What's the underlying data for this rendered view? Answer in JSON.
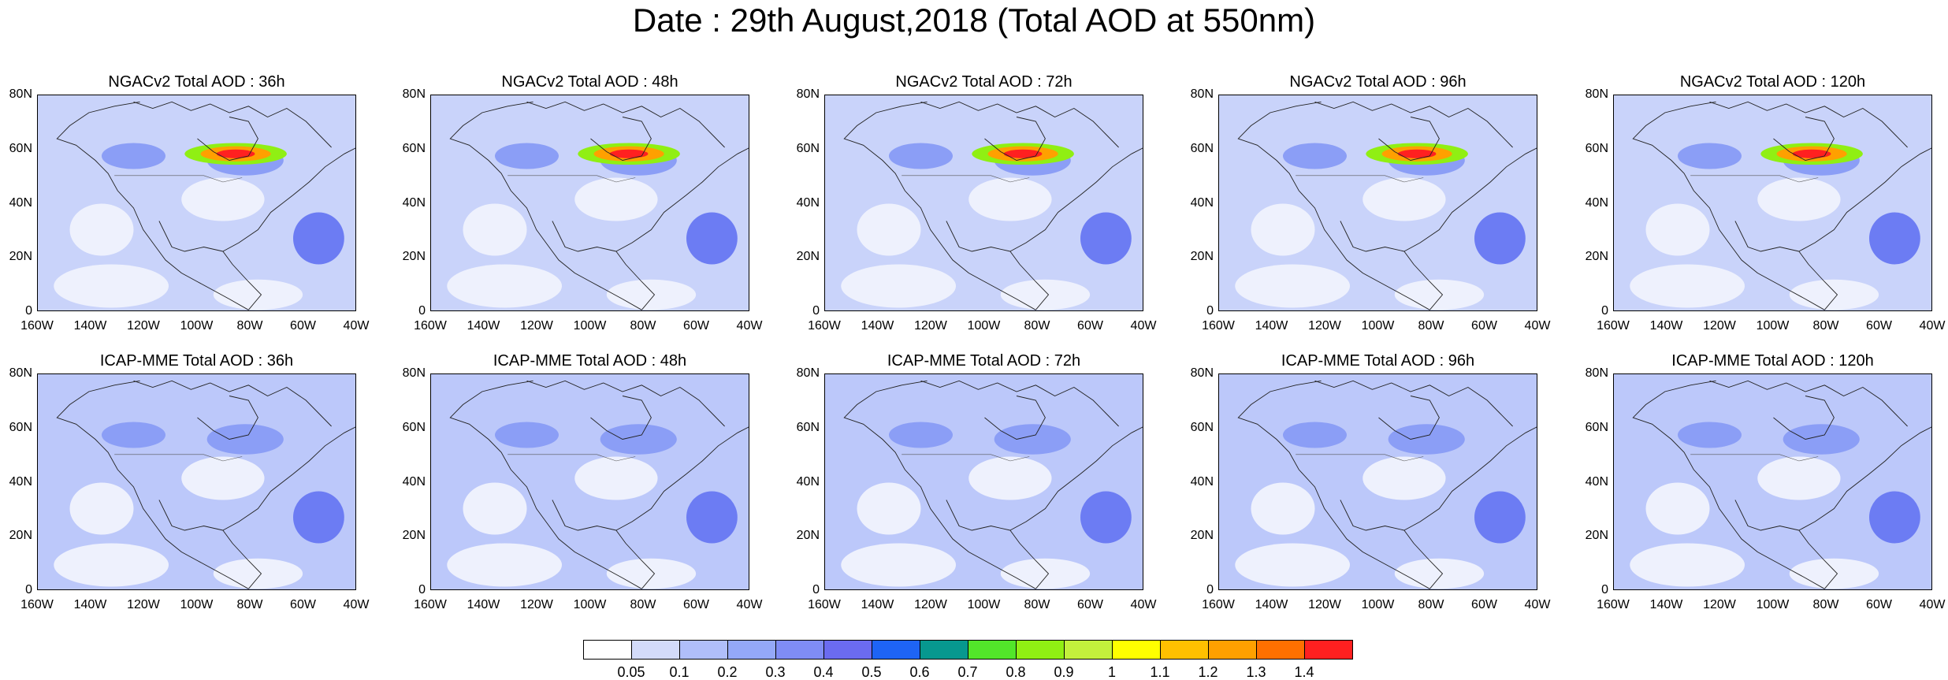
{
  "title": "Date : 29th August,2018 (Total AOD at 550nm)",
  "panels": [
    {
      "title": "NGACv2 Total AOD : 36h"
    },
    {
      "title": "NGACv2 Total AOD : 48h"
    },
    {
      "title": "NGACv2 Total AOD : 72h"
    },
    {
      "title": "NGACv2 Total AOD : 96h"
    },
    {
      "title": "NGACv2 Total AOD : 120h"
    },
    {
      "title": "ICAP-MME Total AOD : 36h"
    },
    {
      "title": "ICAP-MME Total AOD : 48h"
    },
    {
      "title": "ICAP-MME Total AOD : 72h"
    },
    {
      "title": "ICAP-MME Total AOD : 96h"
    },
    {
      "title": "ICAP-MME Total AOD : 120h"
    }
  ],
  "axes": {
    "lat_ticks": [
      "80N",
      "60N",
      "40N",
      "20N",
      "0"
    ],
    "lon_ticks": [
      "160W",
      "140W",
      "120W",
      "100W",
      "80W",
      "60W",
      "40W"
    ],
    "lon_range": [
      -160,
      -40
    ],
    "lat_range": [
      0,
      80
    ]
  },
  "colorbar": {
    "labels": [
      "0.05",
      "0.1",
      "0.2",
      "0.3",
      "0.4",
      "0.5",
      "0.6",
      "0.7",
      "0.8",
      "0.9",
      "1",
      "1.1",
      "1.2",
      "1.3",
      "1.4"
    ],
    "colors": [
      "#ffffff",
      "#d3dbfa",
      "#b0befa",
      "#94a8f8",
      "#7f8cf5",
      "#6b6bf0",
      "#1e64f5",
      "#07988f",
      "#52e62a",
      "#90ef13",
      "#c3f03c",
      "#ffff00",
      "#ffc000",
      "#ffa000",
      "#ff7000",
      "#ff2020"
    ]
  }
}
